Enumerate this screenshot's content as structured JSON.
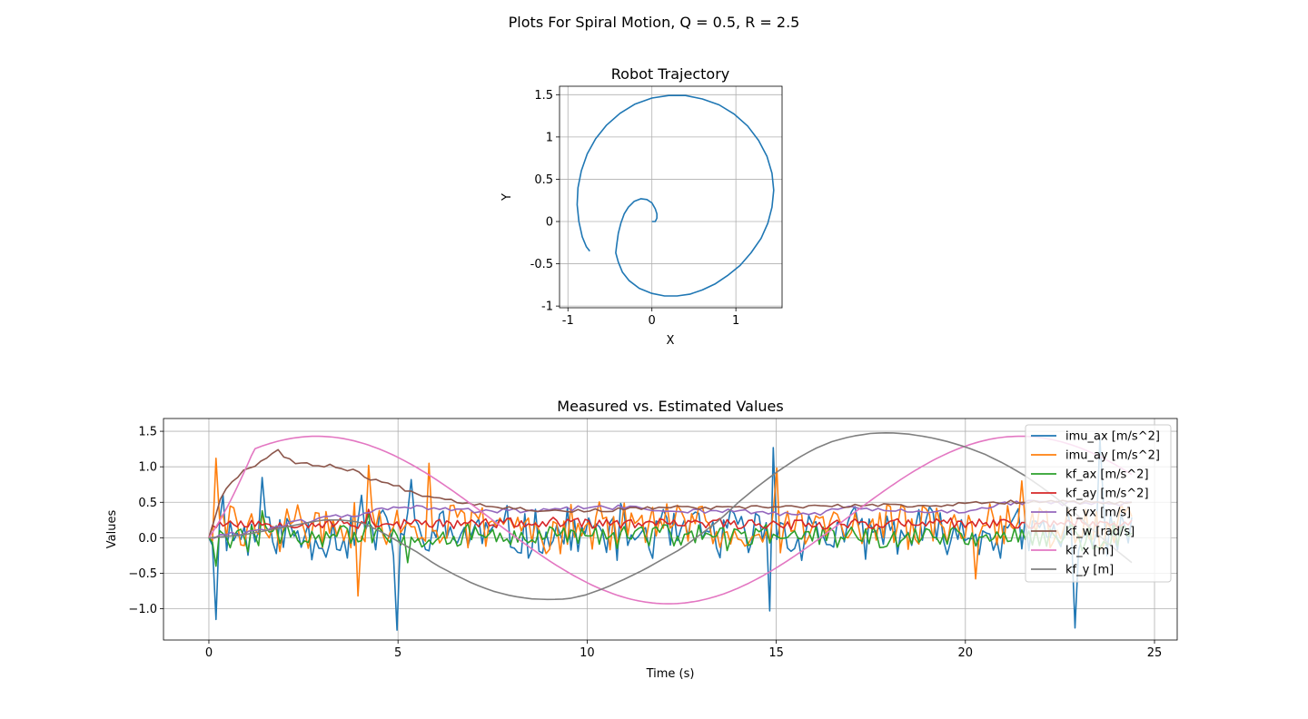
{
  "suptitle": "Plots For Spiral Motion, Q = 0.5, R = 2.5",
  "chart_data": [
    {
      "type": "line",
      "title": "Robot Trajectory",
      "xlabel": "X",
      "ylabel": "Y",
      "xlim": [
        -1.1,
        1.55
      ],
      "ylim": [
        -1.02,
        1.6
      ],
      "xticks": [
        -1,
        0,
        1
      ],
      "yticks": [
        -1.0,
        -0.5,
        0.0,
        0.5,
        1.0,
        1.5
      ],
      "grid": true,
      "color": "#1f77b4",
      "points": [
        [
          0.0,
          0.0
        ],
        [
          0.04,
          0.0
        ],
        [
          0.06,
          0.04
        ],
        [
          0.06,
          0.09
        ],
        [
          0.04,
          0.15
        ],
        [
          0.0,
          0.22
        ],
        [
          -0.06,
          0.26
        ],
        [
          -0.13,
          0.27
        ],
        [
          -0.21,
          0.24
        ],
        [
          -0.28,
          0.17
        ],
        [
          -0.33,
          0.09
        ],
        [
          -0.37,
          -0.02
        ],
        [
          -0.4,
          -0.14
        ],
        [
          -0.42,
          -0.28
        ],
        [
          -0.43,
          -0.37
        ],
        [
          -0.4,
          -0.48
        ],
        [
          -0.35,
          -0.6
        ],
        [
          -0.27,
          -0.7
        ],
        [
          -0.15,
          -0.79
        ],
        [
          0.0,
          -0.85
        ],
        [
          0.15,
          -0.88
        ],
        [
          0.3,
          -0.88
        ],
        [
          0.45,
          -0.86
        ],
        [
          0.6,
          -0.81
        ],
        [
          0.75,
          -0.74
        ],
        [
          0.9,
          -0.64
        ],
        [
          1.05,
          -0.52
        ],
        [
          1.18,
          -0.37
        ],
        [
          1.3,
          -0.2
        ],
        [
          1.38,
          -0.02
        ],
        [
          1.43,
          0.17
        ],
        [
          1.45,
          0.37
        ],
        [
          1.43,
          0.57
        ],
        [
          1.37,
          0.77
        ],
        [
          1.27,
          0.96
        ],
        [
          1.14,
          1.13
        ],
        [
          0.98,
          1.27
        ],
        [
          0.8,
          1.38
        ],
        [
          0.6,
          1.45
        ],
        [
          0.4,
          1.49
        ],
        [
          0.2,
          1.49
        ],
        [
          0.0,
          1.46
        ],
        [
          -0.2,
          1.39
        ],
        [
          -0.38,
          1.28
        ],
        [
          -0.54,
          1.14
        ],
        [
          -0.67,
          0.98
        ],
        [
          -0.77,
          0.8
        ],
        [
          -0.84,
          0.6
        ],
        [
          -0.88,
          0.4
        ],
        [
          -0.89,
          0.2
        ],
        [
          -0.87,
          0.0
        ],
        [
          -0.83,
          -0.18
        ],
        [
          -0.78,
          -0.3
        ],
        [
          -0.74,
          -0.35
        ]
      ]
    },
    {
      "type": "line",
      "title": "Measured vs. Estimated Values",
      "xlabel": "Time (s)",
      "ylabel": "Values",
      "xlim": [
        -1.2,
        25.6
      ],
      "ylim": [
        -1.44,
        1.68
      ],
      "xticks": [
        0,
        5,
        10,
        15,
        20,
        25
      ],
      "yticks": [
        -1.0,
        -0.5,
        0.0,
        0.5,
        1.0,
        1.5
      ],
      "yticklabels": [
        "−1.0",
        "−0.5",
        "0.0",
        "0.5",
        "1.0",
        "1.5"
      ],
      "grid": true,
      "legend": "upper-right",
      "series": [
        {
          "name": "imu_ax [m/s^2]",
          "color": "#1f77b4",
          "kind": "noisy",
          "mean": 0.05,
          "amp": 0.45,
          "seed": 11,
          "spikes": [
            [
              0.18,
              -1.15
            ],
            [
              0.35,
              0.6
            ],
            [
              1.4,
              0.85
            ],
            [
              4.0,
              0.6
            ],
            [
              5.0,
              -1.3
            ],
            [
              5.35,
              0.82
            ],
            [
              14.8,
              -1.03
            ],
            [
              14.9,
              1.27
            ],
            [
              22.9,
              -1.27
            ],
            [
              23.6,
              1.4
            ]
          ]
        },
        {
          "name": "imu_ay [m/s^2]",
          "color": "#ff7f0e",
          "kind": "noisy",
          "mean": 0.15,
          "amp": 0.4,
          "seed": 29,
          "spikes": [
            [
              0.18,
              1.12
            ],
            [
              4.2,
              1.02
            ],
            [
              3.95,
              -0.82
            ],
            [
              5.85,
              1.05
            ],
            [
              15.0,
              0.98
            ],
            [
              20.3,
              -0.58
            ],
            [
              21.5,
              0.8
            ]
          ]
        },
        {
          "name": "kf_ax [m/s^2]",
          "color": "#2ca02c",
          "kind": "noisy",
          "mean": 0.02,
          "amp": 0.22,
          "seed": 47,
          "spikes": [
            [
              0.2,
              -0.4
            ],
            [
              1.4,
              0.38
            ],
            [
              4.2,
              0.35
            ],
            [
              5.3,
              -0.35
            ]
          ]
        },
        {
          "name": "kf_ay [m/s^2]",
          "color": "#d62728",
          "kind": "noisy",
          "mean": 0.2,
          "amp": 0.09,
          "seed": 53,
          "spikes": [
            [
              4.2,
              0.4
            ],
            [
              23.0,
              0.3
            ]
          ]
        },
        {
          "name": "kf_vx [m/s]",
          "color": "#9467bd",
          "x": [
            0,
            1,
            2,
            3,
            4,
            5,
            6,
            7,
            8,
            9,
            10,
            11,
            12,
            13,
            14,
            15,
            16,
            17,
            18,
            19,
            20,
            21,
            22,
            23,
            24.4
          ],
          "y": [
            0.0,
            0.08,
            0.18,
            0.28,
            0.33,
            0.45,
            0.4,
            0.38,
            0.38,
            0.38,
            0.43,
            0.43,
            0.38,
            0.38,
            0.38,
            0.33,
            0.34,
            0.42,
            0.38,
            0.36,
            0.38,
            0.48,
            0.5,
            0.48,
            0.47
          ],
          "jitter": 0.035,
          "seed": 61
        },
        {
          "name": "kf_w [rad/s]",
          "color": "#8c564b",
          "x": [
            0,
            0.3,
            0.6,
            1.0,
            1.3,
            1.6,
            1.7,
            1.8,
            2.0,
            2.3,
            2.8,
            3.2,
            3.8,
            4.2,
            4.6,
            5.0,
            5.5,
            6.0,
            6.5,
            7.0,
            8,
            9,
            10,
            11,
            12,
            13,
            14,
            15,
            16,
            17,
            18,
            19,
            20,
            21,
            22,
            23,
            24.4
          ],
          "y": [
            0.0,
            0.55,
            0.8,
            0.98,
            1.05,
            1.15,
            1.22,
            1.25,
            1.15,
            1.05,
            1.02,
            1.02,
            0.95,
            0.85,
            0.78,
            0.72,
            0.62,
            0.58,
            0.52,
            0.48,
            0.42,
            0.38,
            0.38,
            0.4,
            0.43,
            0.42,
            0.42,
            0.44,
            0.44,
            0.45,
            0.46,
            0.45,
            0.48,
            0.5,
            0.52,
            0.5,
            0.48
          ],
          "jitter": 0.025,
          "seed": 67
        },
        {
          "name": "kf_x [m]",
          "color": "#e377c2",
          "kind": "sine",
          "mean": 0.25,
          "amp": 1.18,
          "phase_t": 7.5,
          "period": 18.6
        },
        {
          "name": "kf_y [m]",
          "color": "#7f7f7f",
          "x": [
            0,
            0.5,
            1,
            1.5,
            2,
            2.5,
            3,
            3.5,
            4,
            4.5,
            5,
            5.5,
            6,
            6.5,
            7,
            7.5,
            8,
            8.5,
            9,
            9.5,
            10,
            10.5,
            11,
            11.5,
            12,
            12.5,
            13,
            13.5,
            14,
            14.5,
            15,
            15.5,
            16,
            16.5,
            17,
            17.5,
            18,
            18.5,
            19,
            19.5,
            20,
            20.5,
            21,
            21.5,
            22,
            22.5,
            23,
            23.5,
            24,
            24.4
          ],
          "y": [
            0.0,
            0.02,
            0.05,
            0.1,
            0.15,
            0.2,
            0.25,
            0.25,
            0.22,
            0.1,
            -0.05,
            -0.2,
            -0.38,
            -0.52,
            -0.65,
            -0.75,
            -0.82,
            -0.86,
            -0.87,
            -0.86,
            -0.8,
            -0.7,
            -0.58,
            -0.45,
            -0.3,
            -0.15,
            0.05,
            0.25,
            0.5,
            0.72,
            0.92,
            1.1,
            1.25,
            1.36,
            1.43,
            1.47,
            1.48,
            1.46,
            1.42,
            1.36,
            1.28,
            1.18,
            1.05,
            0.9,
            0.72,
            0.52,
            0.3,
            0.05,
            -0.18,
            -0.35
          ]
        }
      ],
      "t_end": 24.4
    }
  ]
}
